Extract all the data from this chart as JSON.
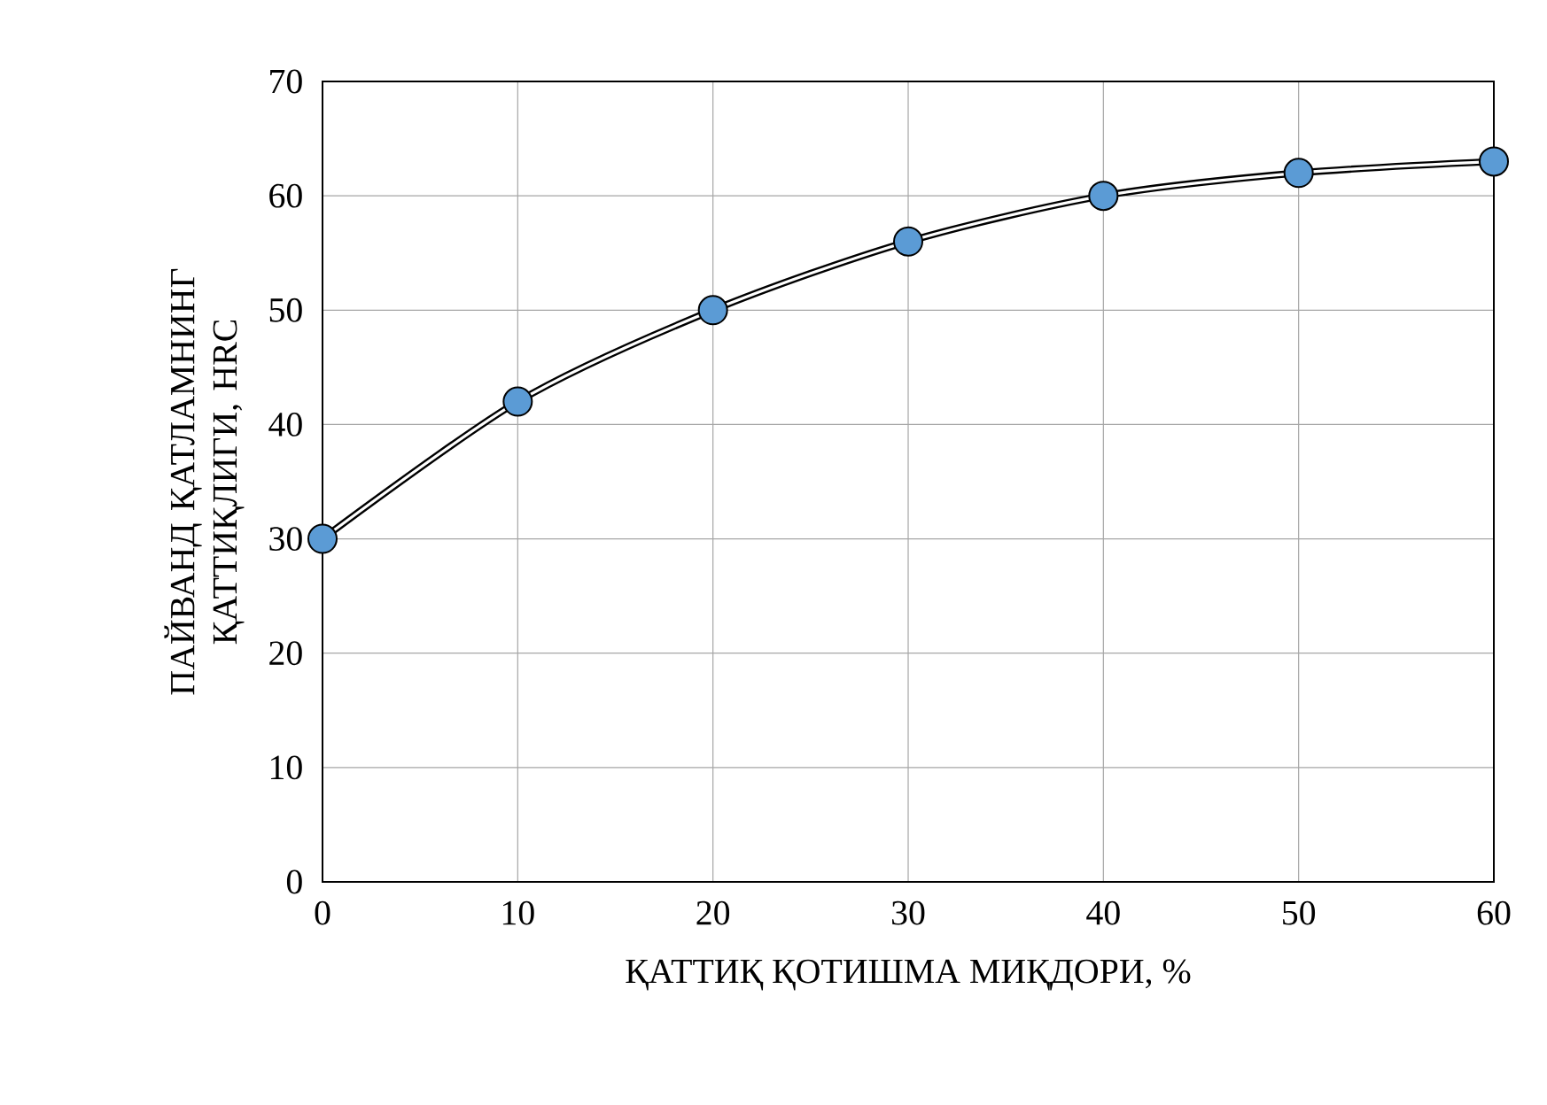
{
  "chart_data": {
    "type": "line",
    "xlabel": "ҚАТТИҚ ҚОТИШМА МИҚДОРИ, %",
    "ylabel": "ПАЙВАНД ҚАТЛАМНИНГ ҚАТТИҚЛИГИ, HRC",
    "x": [
      0,
      10,
      20,
      30,
      40,
      50,
      60
    ],
    "series": [
      {
        "color": "#5b9bd5",
        "values": [
          30,
          42,
          50,
          56,
          60,
          62,
          63
        ]
      }
    ],
    "xlim": [
      0,
      60
    ],
    "ylim": [
      0,
      70
    ],
    "xticks": [
      0,
      10,
      20,
      30,
      40,
      50,
      60
    ],
    "yticks": [
      0,
      10,
      20,
      30,
      40,
      50,
      60,
      70
    ],
    "grid": true,
    "marker": "circle",
    "line_style": "solid"
  }
}
